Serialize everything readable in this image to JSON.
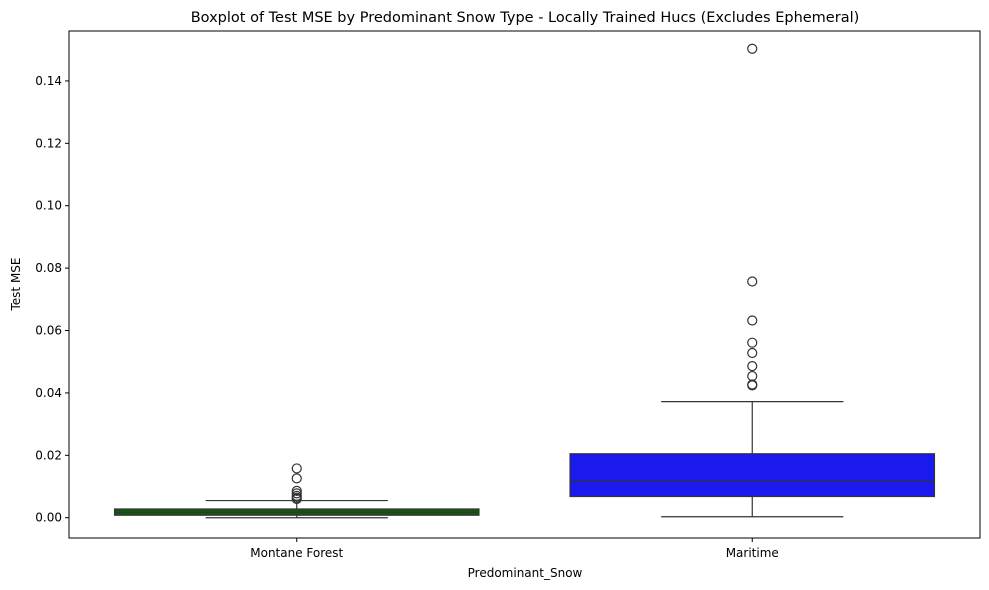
{
  "chart_data": {
    "type": "box",
    "title": "Boxplot of Test MSE by Predominant Snow Type - Locally Trained Hucs (Excludes Ephemeral)",
    "xlabel": "Predominant_Snow",
    "ylabel": "Test MSE",
    "ylim": [
      -0.0065,
      0.156
    ],
    "yticks": [
      0.0,
      0.02,
      0.04,
      0.06,
      0.08,
      0.1,
      0.12,
      0.14
    ],
    "ytick_labels": [
      "0.00",
      "0.02",
      "0.04",
      "0.06",
      "0.08",
      "0.10",
      "0.12",
      "0.14"
    ],
    "grid": false,
    "categories": [
      "Montane Forest",
      "Maritime"
    ],
    "boxes": [
      {
        "category": "Montane Forest",
        "color": "#0f5c0f",
        "whisker_low": 0.0,
        "q1": 0.0008,
        "median": 0.0018,
        "q3": 0.0028,
        "whisker_high": 0.0055,
        "outliers": [
          0.0158,
          0.0126,
          0.0086,
          0.0078,
          0.007,
          0.0064,
          0.006
        ]
      },
      {
        "category": "Maritime",
        "color": "#1a1aee",
        "whisker_low": 0.0003,
        "q1": 0.0068,
        "median": 0.0118,
        "q3": 0.0205,
        "whisker_high": 0.0372,
        "outliers": [
          0.1503,
          0.0757,
          0.0632,
          0.0561,
          0.0528,
          0.0486,
          0.0454,
          0.0427,
          0.0424
        ]
      }
    ]
  }
}
